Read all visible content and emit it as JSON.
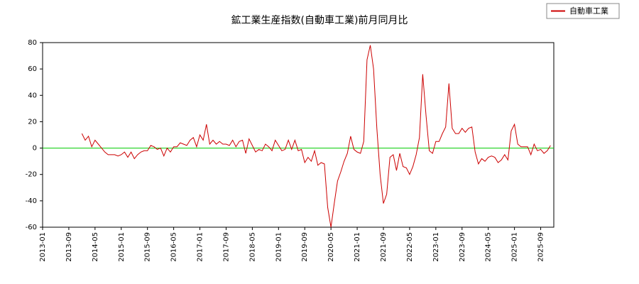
{
  "chart_data": {
    "type": "line",
    "title": "鉱工業生産指数(自動車工業)前月同月比",
    "x": [
      "2014-01",
      "2014-02",
      "2014-03",
      "2014-04",
      "2014-05",
      "2014-06",
      "2014-07",
      "2014-08",
      "2014-09",
      "2014-10",
      "2014-11",
      "2014-12",
      "2015-01",
      "2015-02",
      "2015-03",
      "2015-04",
      "2015-05",
      "2015-06",
      "2015-07",
      "2015-08",
      "2015-09",
      "2015-10",
      "2015-11",
      "2015-12",
      "2016-01",
      "2016-02",
      "2016-03",
      "2016-04",
      "2016-05",
      "2016-06",
      "2016-07",
      "2016-08",
      "2016-09",
      "2016-10",
      "2016-11",
      "2016-12",
      "2017-01",
      "2017-02",
      "2017-03",
      "2017-04",
      "2017-05",
      "2017-06",
      "2017-07",
      "2017-08",
      "2017-09",
      "2017-10",
      "2017-11",
      "2017-12",
      "2018-01",
      "2018-02",
      "2018-03",
      "2018-04",
      "2018-05",
      "2018-06",
      "2018-07",
      "2018-08",
      "2018-09",
      "2018-10",
      "2018-11",
      "2018-12",
      "2019-01",
      "2019-02",
      "2019-03",
      "2019-04",
      "2019-05",
      "2019-06",
      "2019-07",
      "2019-08",
      "2019-09",
      "2019-10",
      "2019-11",
      "2019-12",
      "2020-01",
      "2020-02",
      "2020-03",
      "2020-04",
      "2020-05",
      "2020-06",
      "2020-07",
      "2020-08",
      "2020-09",
      "2020-10",
      "2020-11",
      "2020-12",
      "2021-01",
      "2021-02",
      "2021-03",
      "2021-04",
      "2021-05",
      "2021-06",
      "2021-07",
      "2021-08",
      "2021-09",
      "2021-10",
      "2021-11",
      "2021-12",
      "2022-01",
      "2022-02",
      "2022-03",
      "2022-04",
      "2022-05",
      "2022-06",
      "2022-07",
      "2022-08",
      "2022-09",
      "2022-10",
      "2022-11",
      "2022-12",
      "2023-01",
      "2023-02",
      "2023-03",
      "2023-04",
      "2023-05",
      "2023-06",
      "2023-07",
      "2023-08",
      "2023-09",
      "2023-10",
      "2023-11",
      "2023-12",
      "2024-01",
      "2024-02",
      "2024-03",
      "2024-04",
      "2024-05",
      "2024-06",
      "2024-07",
      "2024-08",
      "2024-09",
      "2024-10",
      "2024-11",
      "2024-12",
      "2025-01",
      "2025-02",
      "2025-03",
      "2025-04",
      "2025-05",
      "2025-06",
      "2025-07",
      "2025-08",
      "2025-09",
      "2025-10",
      "2025-11",
      "2025-12"
    ],
    "series": [
      {
        "name": "自動車工業",
        "color": "#cc0000",
        "values": [
          11,
          6,
          9,
          1,
          6,
          3,
          0,
          -3,
          -5,
          -5,
          -5,
          -6,
          -5,
          -3,
          -7,
          -3,
          -8,
          -5,
          -3,
          -2,
          -2,
          2,
          1,
          -1,
          0,
          -6,
          0,
          -3,
          1,
          1,
          4,
          3,
          2,
          6,
          8,
          1,
          10,
          6,
          18,
          3,
          6,
          3,
          5,
          3,
          3,
          2,
          6,
          1,
          5,
          6,
          -4,
          7,
          2,
          -3,
          -1,
          -2,
          3,
          1,
          -2,
          6,
          2,
          -2,
          -1,
          6,
          -1,
          6,
          -2,
          -1,
          -11,
          -7,
          -10,
          -2,
          -13,
          -11,
          -12,
          -45,
          -60,
          -42,
          -25,
          -18,
          -10,
          -4,
          9,
          -1,
          -3,
          -4,
          5,
          67,
          78,
          60,
          15,
          -20,
          -42,
          -35,
          -7,
          -5,
          -17,
          -4,
          -14,
          -15,
          -20,
          -14,
          -5,
          8,
          56,
          25,
          -2,
          -4,
          5,
          5,
          11,
          16,
          49,
          15,
          11,
          11,
          15,
          12,
          15,
          16,
          -3,
          -12,
          -8,
          -10,
          -7,
          -6,
          -7,
          -11,
          -9,
          -5,
          -9,
          13,
          18,
          3,
          1,
          1,
          1,
          -5,
          3,
          -2,
          -1,
          -4,
          -2,
          2
        ]
      }
    ],
    "xlim": [
      "2013-01",
      "2026-01"
    ],
    "xticks": [
      "2013-01",
      "2013-09",
      "2014-05",
      "2015-01",
      "2015-09",
      "2016-05",
      "2017-01",
      "2017-09",
      "2018-05",
      "2019-01",
      "2019-09",
      "2020-05",
      "2021-01",
      "2021-09",
      "2022-05",
      "2023-01",
      "2023-09",
      "2024-05",
      "2025-01",
      "2025-09"
    ],
    "ylim": [
      -60,
      80
    ],
    "yticks": [
      -60,
      -40,
      -20,
      0,
      20,
      40,
      60,
      80
    ],
    "zero_line_color": "#00cc00",
    "legend": "upper right"
  }
}
